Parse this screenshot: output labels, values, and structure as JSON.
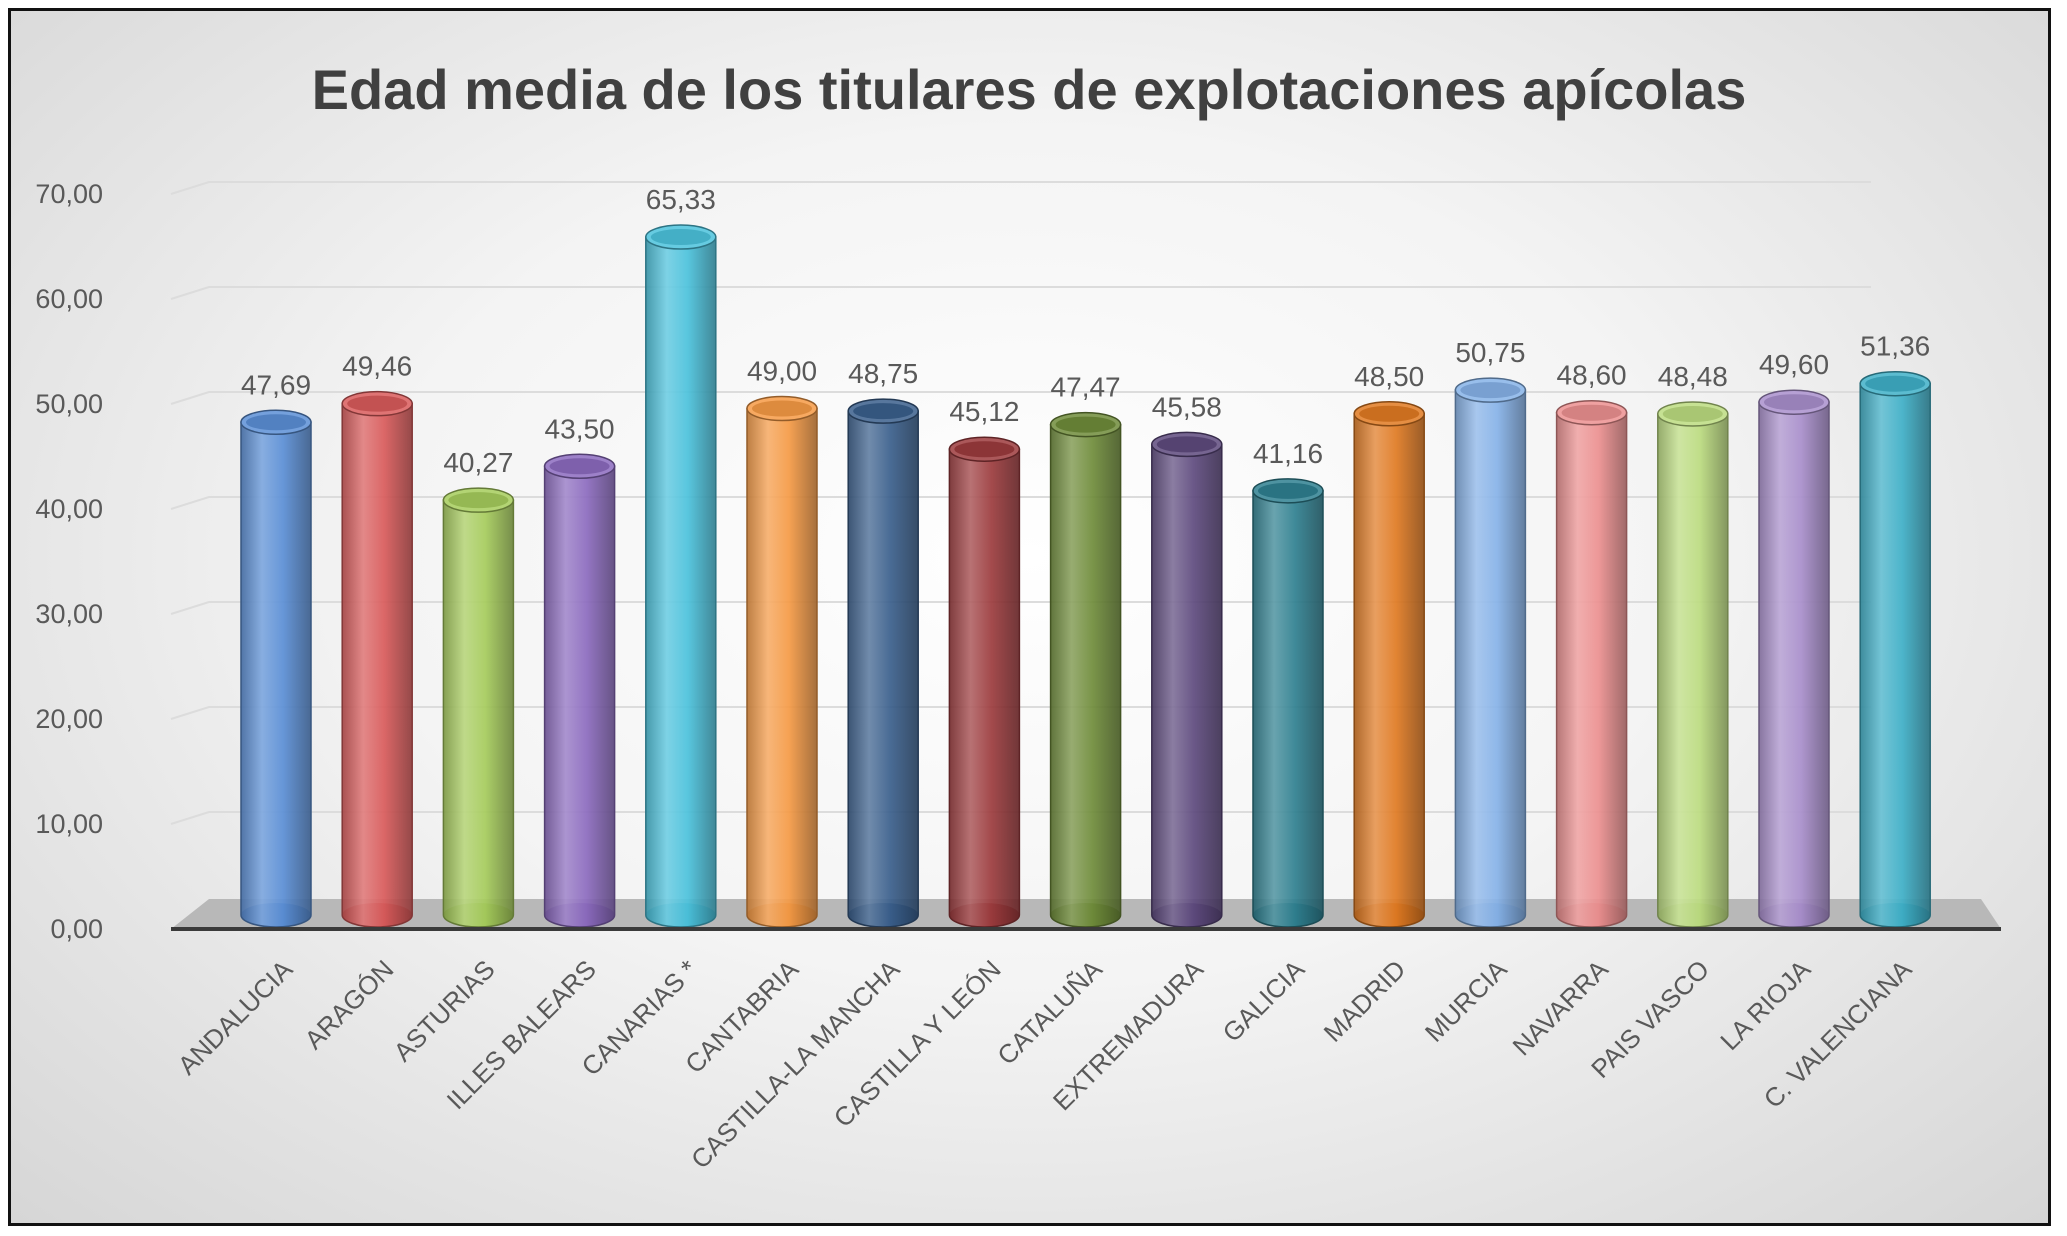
{
  "chart_data": {
    "type": "bar",
    "title": "Edad media de los titulares de explotaciones apícolas",
    "xlabel": "",
    "ylabel": "",
    "ylim": [
      0,
      70
    ],
    "y_ticks": [
      "0,00",
      "10,00",
      "20,00",
      "30,00",
      "40,00",
      "50,00",
      "60,00",
      "70,00"
    ],
    "grid": true,
    "legend": "none",
    "bar_shape": "cylinder",
    "categories": [
      "ANDALUCIA",
      "ARAGÓN",
      "ASTURIAS",
      "ILLES BALEARS",
      "CANARIAS *",
      "CANTABRIA",
      "CASTILLA-LA MANCHA",
      "CASTILLA Y LEÓN",
      "CATALUÑA",
      "EXTREMADURA",
      "GALICIA",
      "MADRID",
      "MURCIA",
      "NAVARRA",
      "PAIS VASCO",
      "LA RIOJA",
      "C. VALENCIANA"
    ],
    "values": [
      47.69,
      49.46,
      40.27,
      43.5,
      65.33,
      49.0,
      48.75,
      45.12,
      47.47,
      45.58,
      41.16,
      48.5,
      50.75,
      48.6,
      48.48,
      49.6,
      51.36
    ],
    "data_labels": [
      "47,69",
      "49,46",
      "40,27",
      "43,50",
      "65,33",
      "49,00",
      "48,75",
      "45,12",
      "47,47",
      "45,58",
      "41,16",
      "48,50",
      "50,75",
      "48,60",
      "48,48",
      "49,60",
      "51,36"
    ],
    "bar_colors": [
      "#5b8fd6",
      "#d95b5b",
      "#a6cc5c",
      "#8c6bbf",
      "#4bc2dc",
      "#f59a45",
      "#3a5f8c",
      "#9c3b3d",
      "#6f8c3a",
      "#5e4a7e",
      "#2f8090",
      "#e07a22",
      "#86b2e8",
      "#ec9090",
      "#bcdc80",
      "#a98fcc",
      "#3fb0c8"
    ]
  }
}
